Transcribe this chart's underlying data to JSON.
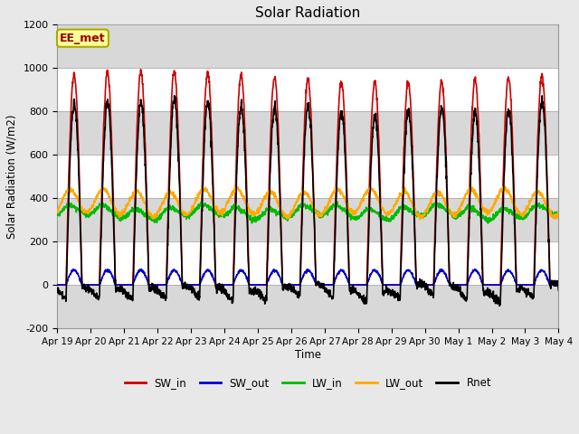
{
  "title": "Solar Radiation",
  "ylabel": "Solar Radiation (W/m2)",
  "xlabel": "Time",
  "ylim": [
    -200,
    1200
  ],
  "yticks": [
    -200,
    0,
    200,
    400,
    600,
    800,
    1000,
    1200
  ],
  "num_days": 15,
  "points_per_day": 144,
  "annotation": "EE_met",
  "fig_bg": "#e8e8e8",
  "plot_bg": "#ffffff",
  "grid_color": "#cccccc",
  "series": {
    "SW_in": {
      "color": "#cc0000",
      "lw": 1.2
    },
    "SW_out": {
      "color": "#0000cc",
      "lw": 1.2
    },
    "LW_in": {
      "color": "#00bb00",
      "lw": 1.2
    },
    "LW_out": {
      "color": "#ffaa00",
      "lw": 1.2
    },
    "Rnet": {
      "color": "#000000",
      "lw": 1.2
    }
  },
  "xtick_labels": [
    "Apr 19",
    "Apr 20",
    "Apr 21",
    "Apr 22",
    "Apr 23",
    "Apr 24",
    "Apr 25",
    "Apr 26",
    "Apr 27",
    "Apr 28",
    "Apr 29",
    "Apr 30",
    "May 1",
    "May 2",
    "May 3",
    "May 4"
  ],
  "legend_order": [
    "SW_in",
    "SW_out",
    "LW_in",
    "LW_out",
    "Rnet"
  ]
}
